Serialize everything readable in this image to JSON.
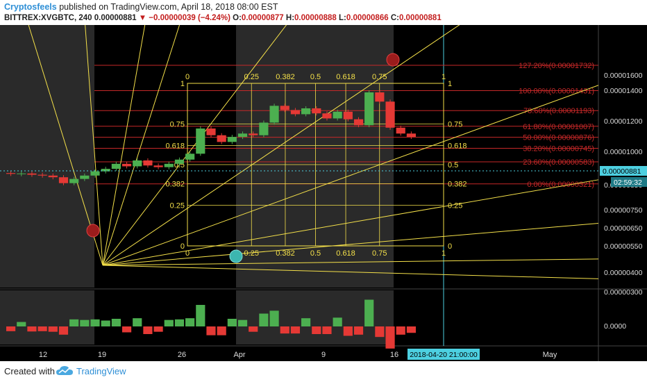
{
  "header": {
    "author": "Cryptosfeels",
    "published": "published on TradingView.com, April 18, 2018 08:00 EST",
    "symbol_line": "BITTREX:XVGBTC, 240",
    "last": "0.00000881",
    "change": "▼ −0.00000039 (−4.24%)",
    "o_label": "O:",
    "o_value": "0.00000877",
    "h_label": "H:",
    "h_value": "0.00000888",
    "l_label": "L:",
    "l_value": "0.00000866",
    "c_label": "C:",
    "c_value": "0.00000881"
  },
  "footer": {
    "created_with": "Created with",
    "brand": "TradingView"
  },
  "colors": {
    "background": "#000000",
    "up": "#4caf50",
    "down": "#e53935",
    "fib": "#c62828",
    "gann": "#f5e14a",
    "session": "#2a2a2a",
    "price_tag": "#4dd0e1"
  },
  "chart_data": {
    "type": "candlestick",
    "symbol": "BITTREX:XVGBTC",
    "interval": "240",
    "price_axis_ticks": [
      "0.00001600",
      "0.00001400",
      "0.00001200",
      "0.00001000",
      "0.00000850",
      "0.00000750",
      "0.00000650",
      "0.00000550",
      "0.00000400",
      "0.00000300"
    ],
    "volume_axis_tick": "0.0000",
    "time_axis_ticks": [
      "12",
      "19",
      "26",
      "Apr",
      "9",
      "16",
      "May"
    ],
    "crosshair_time": "2018-04-20 21:00:00",
    "last_price_tag": "0.00000881",
    "countdown_tag": "02:59:32",
    "fib_levels": [
      {
        "label": "127.20%(0.00001732)",
        "price": 1.732e-05
      },
      {
        "label": "100.00%(0.00001431)",
        "price": 1.431e-05
      },
      {
        "label": "78.60%(0.00001193)",
        "price": 1.193e-05
      },
      {
        "label": "61.80%(0.00001007)",
        "price": 1.007e-05
      },
      {
        "label": "50.00%(0.00000876)",
        "price": 8.76e-06
      },
      {
        "label": "38.20%(0.00000745)",
        "price": 7.45e-06
      },
      {
        "label": "23.60%(0.00000583)",
        "price": 5.83e-06
      },
      {
        "label": "0.00%(0.00000321)",
        "price": 3.21e-06
      }
    ],
    "gann_box": {
      "top_labels": [
        "0",
        "0.25",
        "0.382",
        "0.5",
        "0.618",
        "0.75",
        "1"
      ],
      "bottom_labels": [
        "0",
        "0.25",
        "0.382",
        "0.5",
        "0.618",
        "0.75",
        "1"
      ],
      "left_labels": [
        "1",
        "0.75",
        "0.618",
        "0.5",
        "0.382",
        "0.25",
        "0"
      ],
      "right_labels": [
        "1",
        "0.75",
        "0.618",
        "0.5",
        "0.382",
        "0.25",
        "0"
      ]
    },
    "price_path": [
      [
        4.5e-06,
        4.4e-06
      ],
      [
        4.4e-06,
        4.45e-06
      ],
      [
        4.45e-06,
        4.3e-06
      ],
      [
        4.3e-06,
        4.2e-06
      ],
      [
        4.2e-06,
        4e-06
      ],
      [
        4e-06,
        3.3e-06
      ],
      [
        3.3e-06,
        3.8e-06
      ],
      [
        3.8e-06,
        4.2e-06
      ],
      [
        4.2e-06,
        4.7e-06
      ],
      [
        4.7e-06,
        5e-06
      ],
      [
        5e-06,
        5.6e-06
      ],
      [
        5.6e-06,
        5.3e-06
      ],
      [
        5.3e-06,
        6e-06
      ],
      [
        6e-06,
        5.4e-06
      ],
      [
        5.4e-06,
        5.2e-06
      ],
      [
        5.2e-06,
        5.6e-06
      ],
      [
        5.6e-06,
        6.1e-06
      ],
      [
        6.1e-06,
        6.8e-06
      ],
      [
        6.8e-06,
        9.8e-06
      ],
      [
        9.8e-06,
        9e-06
      ],
      [
        9e-06,
        8.2e-06
      ],
      [
        8.2e-06,
        8.8e-06
      ],
      [
        8.8e-06,
        9.2e-06
      ],
      [
        9.2e-06,
        9e-06
      ],
      [
        9e-06,
        1.05e-05
      ],
      [
        1.05e-05,
        1.25e-05
      ],
      [
        1.25e-05,
        1.2e-05
      ],
      [
        1.2e-05,
        1.15e-05
      ],
      [
        1.15e-05,
        1.22e-05
      ],
      [
        1.22e-05,
        1.16e-05
      ],
      [
        1.16e-05,
        1.1e-05
      ],
      [
        1.1e-05,
        1.18e-05
      ],
      [
        1.18e-05,
        1.09e-05
      ],
      [
        1.09e-05,
        1.02e-05
      ],
      [
        1.02e-05,
        1.41e-05
      ],
      [
        1.41e-05,
        1.3e-05
      ],
      [
        1.3e-05,
        9.9e-06
      ],
      [
        9.9e-06,
        9.2e-06
      ],
      [
        9.2e-06,
        8.81e-06
      ]
    ]
  }
}
